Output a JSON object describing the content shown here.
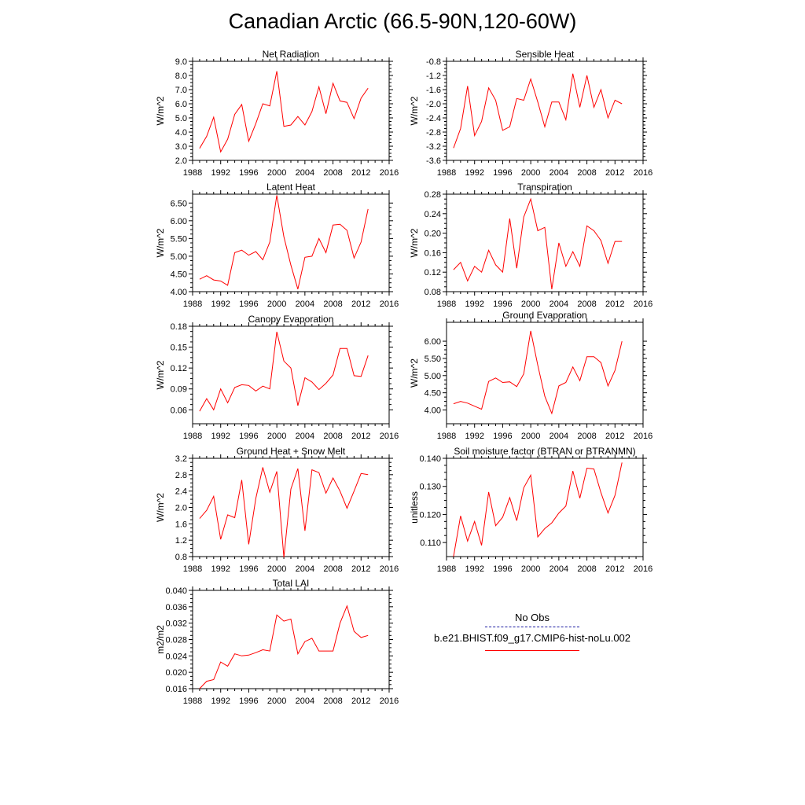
{
  "title": "Canadian Arctic (66.5-90N,120-60W)",
  "colors": {
    "model": "#ff0000",
    "obs": "#1a1aa0"
  },
  "legend": {
    "obs_label": "No Obs",
    "model_label": "b.e21.BHIST.f09_g17.CMIP6-hist-noLu.002"
  },
  "chart_data": [
    {
      "type": "line",
      "title": "Net Radiation",
      "ylabel": "W/m^2",
      "xlim": [
        1988,
        2016
      ],
      "xticks": [
        1988,
        1992,
        1996,
        2000,
        2004,
        2008,
        2012,
        2016
      ],
      "ylim": [
        2.0,
        9.0
      ],
      "yticks": [
        "2.0",
        "3.0",
        "4.0",
        "5.0",
        "6.0",
        "7.0",
        "8.0",
        "9.0"
      ],
      "x": [
        1989,
        1990,
        1991,
        1992,
        1993,
        1994,
        1995,
        1996,
        1997,
        1998,
        1999,
        2000,
        2001,
        2002,
        2003,
        2004,
        2005,
        2006,
        2007,
        2008,
        2009,
        2010,
        2011,
        2012,
        2013
      ],
      "y": [
        2.85,
        3.7,
        5.05,
        2.6,
        3.5,
        5.25,
        5.95,
        3.35,
        4.6,
        6.0,
        5.85,
        8.3,
        4.4,
        4.5,
        5.1,
        4.5,
        5.45,
        7.2,
        5.3,
        7.45,
        6.2,
        6.1,
        4.95,
        6.4,
        7.1
      ]
    },
    {
      "type": "line",
      "title": "Sensible Heat",
      "ylabel": "W/m^2",
      "xlim": [
        1988,
        2016
      ],
      "xticks": [
        1988,
        1992,
        1996,
        2000,
        2004,
        2008,
        2012,
        2016
      ],
      "ylim": [
        -3.6,
        -0.8
      ],
      "yticks": [
        "-3.6",
        "-3.2",
        "-2.8",
        "-2.4",
        "-2.0",
        "-1.6",
        "-1.2",
        "-0.8"
      ],
      "x": [
        1989,
        1990,
        1991,
        1992,
        1993,
        1994,
        1995,
        1996,
        1997,
        1998,
        1999,
        2000,
        2001,
        2002,
        2003,
        2004,
        2005,
        2006,
        2007,
        2008,
        2009,
        2010,
        2011,
        2012,
        2013
      ],
      "y": [
        -3.25,
        -2.7,
        -1.5,
        -2.9,
        -2.5,
        -1.55,
        -1.9,
        -2.75,
        -2.65,
        -1.85,
        -1.9,
        -1.3,
        -1.95,
        -2.65,
        -1.95,
        -1.95,
        -2.45,
        -1.15,
        -2.1,
        -1.2,
        -2.1,
        -1.6,
        -2.4,
        -1.9,
        -2.0
      ]
    },
    {
      "type": "line",
      "title": "Latent Heat",
      "ylabel": "W/m^2",
      "xlim": [
        1988,
        2016
      ],
      "xticks": [
        1988,
        1992,
        1996,
        2000,
        2004,
        2008,
        2012,
        2016
      ],
      "ylim": [
        4.0,
        6.75
      ],
      "yticks": [
        "4.00",
        "4.50",
        "5.00",
        "5.50",
        "6.00",
        "6.50"
      ],
      "x": [
        1989,
        1990,
        1991,
        1992,
        1993,
        1994,
        1995,
        1996,
        1997,
        1998,
        1999,
        2000,
        2001,
        2002,
        2003,
        2004,
        2005,
        2006,
        2007,
        2008,
        2009,
        2010,
        2011,
        2012,
        2013
      ],
      "y": [
        4.35,
        4.45,
        4.33,
        4.3,
        4.18,
        5.1,
        5.17,
        5.03,
        5.13,
        4.9,
        5.4,
        6.72,
        5.55,
        4.75,
        4.07,
        4.97,
        5.0,
        5.5,
        5.1,
        5.88,
        5.9,
        5.73,
        4.95,
        5.4,
        6.33
      ]
    },
    {
      "type": "line",
      "title": "Transpiration",
      "ylabel": "W/m^2",
      "xlim": [
        1988,
        2016
      ],
      "xticks": [
        1988,
        1992,
        1996,
        2000,
        2004,
        2008,
        2012,
        2016
      ],
      "ylim": [
        0.08,
        0.28
      ],
      "yticks": [
        "0.08",
        "0.12",
        "0.16",
        "0.20",
        "0.24",
        "0.28"
      ],
      "x": [
        1989,
        1990,
        1991,
        1992,
        1993,
        1994,
        1995,
        1996,
        1997,
        1998,
        1999,
        2000,
        2001,
        2002,
        2003,
        2004,
        2005,
        2006,
        2007,
        2008,
        2009,
        2010,
        2011,
        2012,
        2013
      ],
      "y": [
        0.125,
        0.14,
        0.102,
        0.132,
        0.12,
        0.165,
        0.135,
        0.12,
        0.23,
        0.128,
        0.233,
        0.27,
        0.205,
        0.212,
        0.085,
        0.18,
        0.132,
        0.162,
        0.132,
        0.215,
        0.205,
        0.185,
        0.138,
        0.183,
        0.183
      ]
    },
    {
      "type": "line",
      "title": "Canopy Evaporation",
      "ylabel": "W/m^2",
      "xlim": [
        1988,
        2016
      ],
      "xticks": [
        1988,
        1992,
        1996,
        2000,
        2004,
        2008,
        2012,
        2016
      ],
      "ylim": [
        0.04,
        0.18
      ],
      "yticks": [
        "0.06",
        "0.09",
        "0.12",
        "0.15",
        "0.18"
      ],
      "x": [
        1989,
        1990,
        1991,
        1992,
        1993,
        1994,
        1995,
        1996,
        1997,
        1998,
        1999,
        2000,
        2001,
        2002,
        2003,
        2004,
        2005,
        2006,
        2007,
        2008,
        2009,
        2010,
        2011,
        2012,
        2013
      ],
      "y": [
        0.058,
        0.076,
        0.06,
        0.09,
        0.07,
        0.092,
        0.096,
        0.095,
        0.087,
        0.094,
        0.09,
        0.172,
        0.13,
        0.12,
        0.066,
        0.106,
        0.1,
        0.089,
        0.098,
        0.11,
        0.148,
        0.148,
        0.109,
        0.108,
        0.138
      ]
    },
    {
      "type": "line",
      "title": "Ground Evaporation",
      "ylabel": "W/m^2",
      "xlim": [
        1988,
        2016
      ],
      "xticks": [
        1988,
        1992,
        1996,
        2000,
        2004,
        2008,
        2012,
        2016
      ],
      "ylim": [
        3.6,
        6.55
      ],
      "yticks": [
        "4.00",
        "4.50",
        "5.00",
        "5.50",
        "6.00"
      ],
      "x": [
        1989,
        1990,
        1991,
        1993,
        1994,
        1995,
        1996,
        1997,
        1998,
        1999,
        2000,
        2001,
        2002,
        2003,
        2004,
        2005,
        2006,
        2007,
        2008,
        2009,
        2010,
        2011,
        2012,
        2013
      ],
      "y": [
        4.18,
        4.25,
        4.2,
        4.02,
        4.83,
        4.93,
        4.8,
        4.82,
        4.68,
        5.05,
        6.3,
        5.3,
        4.4,
        3.9,
        4.7,
        4.8,
        5.25,
        4.85,
        5.55,
        5.55,
        5.38,
        4.7,
        5.15,
        6.0
      ]
    },
    {
      "type": "line",
      "title": "Ground Heat + Snow Melt",
      "ylabel": "W/m^2",
      "xlim": [
        1988,
        2016
      ],
      "xticks": [
        1988,
        1992,
        1996,
        2000,
        2004,
        2008,
        2012,
        2016
      ],
      "ylim": [
        0.8,
        3.2
      ],
      "yticks": [
        "0.8",
        "1.2",
        "1.6",
        "2.0",
        "2.4",
        "2.8",
        "3.2"
      ],
      "x": [
        1989,
        1990,
        1991,
        1992,
        1993,
        1994,
        1995,
        1996,
        1997,
        1998,
        1999,
        2000,
        2001,
        2002,
        2003,
        2004,
        2005,
        2006,
        2007,
        2008,
        2009,
        2010,
        2011,
        2012,
        2013
      ],
      "y": [
        1.73,
        1.93,
        2.27,
        1.22,
        1.82,
        1.75,
        2.67,
        1.1,
        2.22,
        2.98,
        2.37,
        2.88,
        0.78,
        2.45,
        2.95,
        1.43,
        2.92,
        2.85,
        2.35,
        2.72,
        2.4,
        1.98,
        2.4,
        2.83,
        2.8
      ]
    },
    {
      "type": "line",
      "title": "Soil moisture factor (BTRAN or BTRANMN)",
      "ylabel": "unitless",
      "xlim": [
        1988,
        2016
      ],
      "xticks": [
        1988,
        1992,
        1996,
        2000,
        2004,
        2008,
        2012,
        2016
      ],
      "ylim": [
        0.105,
        0.14
      ],
      "yticks": [
        "0.110",
        "0.120",
        "0.130",
        "0.140"
      ],
      "x": [
        1989,
        1990,
        1991,
        1992,
        1993,
        1994,
        1995,
        1996,
        1997,
        1998,
        1999,
        2000,
        2001,
        2002,
        2003,
        2004,
        2005,
        2006,
        2007,
        2008,
        2009,
        2010,
        2011,
        2012,
        2013
      ],
      "y": [
        0.105,
        0.1195,
        0.1105,
        0.1175,
        0.109,
        0.128,
        0.116,
        0.119,
        0.126,
        0.1178,
        0.1295,
        0.134,
        0.112,
        0.115,
        0.117,
        0.1205,
        0.123,
        0.1355,
        0.1258,
        0.1365,
        0.1362,
        0.1278,
        0.1205,
        0.1268,
        0.1385
      ]
    },
    {
      "type": "line",
      "title": "Total LAI",
      "ylabel": "m2/m2",
      "xlim": [
        1988,
        2016
      ],
      "xticks": [
        1988,
        1992,
        1996,
        2000,
        2004,
        2008,
        2012,
        2016
      ],
      "ylim": [
        0.016,
        0.04
      ],
      "yticks": [
        "0.016",
        "0.020",
        "0.024",
        "0.028",
        "0.032",
        "0.036",
        "0.040"
      ],
      "x": [
        1989,
        1990,
        1991,
        1992,
        1993,
        1994,
        1995,
        1996,
        1997,
        1998,
        1999,
        2000,
        2001,
        2002,
        2003,
        2004,
        2005,
        2006,
        2007,
        2008,
        2009,
        2010,
        2011,
        2012,
        2013
      ],
      "y": [
        0.016,
        0.0178,
        0.0182,
        0.0225,
        0.0215,
        0.0245,
        0.024,
        0.0242,
        0.0248,
        0.0255,
        0.0252,
        0.034,
        0.0325,
        0.033,
        0.0245,
        0.0275,
        0.0283,
        0.0252,
        0.0252,
        0.0252,
        0.032,
        0.0362,
        0.03,
        0.0285,
        0.029
      ]
    }
  ]
}
